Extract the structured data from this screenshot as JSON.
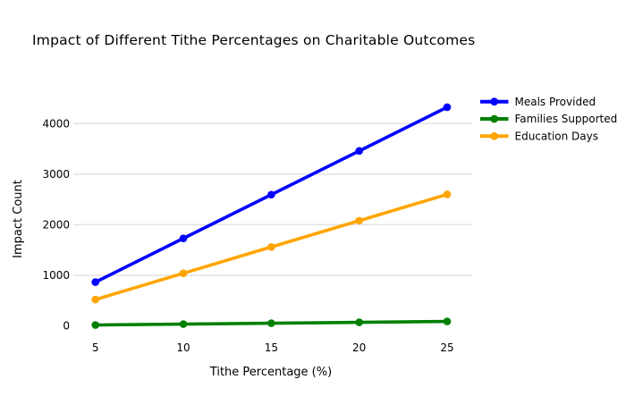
{
  "title": "Impact of Different Tithe Percentages on Charitable Outcomes",
  "chart_data": {
    "type": "line",
    "title": "Impact of Different Tithe Percentages on Charitable Outcomes",
    "x": [
      5,
      10,
      15,
      20,
      25
    ],
    "xlabel": "Tithe Percentage (%)",
    "ylabel": "Impact Count",
    "yticks": [
      0,
      1000,
      2000,
      3000,
      4000
    ],
    "ylim": [
      0,
      4700
    ],
    "grid": "horizontal-only",
    "legend_position": "right",
    "marker": "circle",
    "series": [
      {
        "name": "Meals Provided",
        "color": "#0000ff",
        "values": [
          865,
          1730,
          2595,
          3460,
          4325
        ]
      },
      {
        "name": "Families Supported",
        "color": "#008000",
        "values": [
          17,
          35,
          52,
          69,
          87
        ]
      },
      {
        "name": "Education Days",
        "color": "#ffa500",
        "values": [
          520,
          1040,
          1560,
          2080,
          2600
        ]
      }
    ]
  },
  "colors": {
    "background": "#ffffff",
    "gridline": "#e3e3e3",
    "text": "#000000"
  }
}
